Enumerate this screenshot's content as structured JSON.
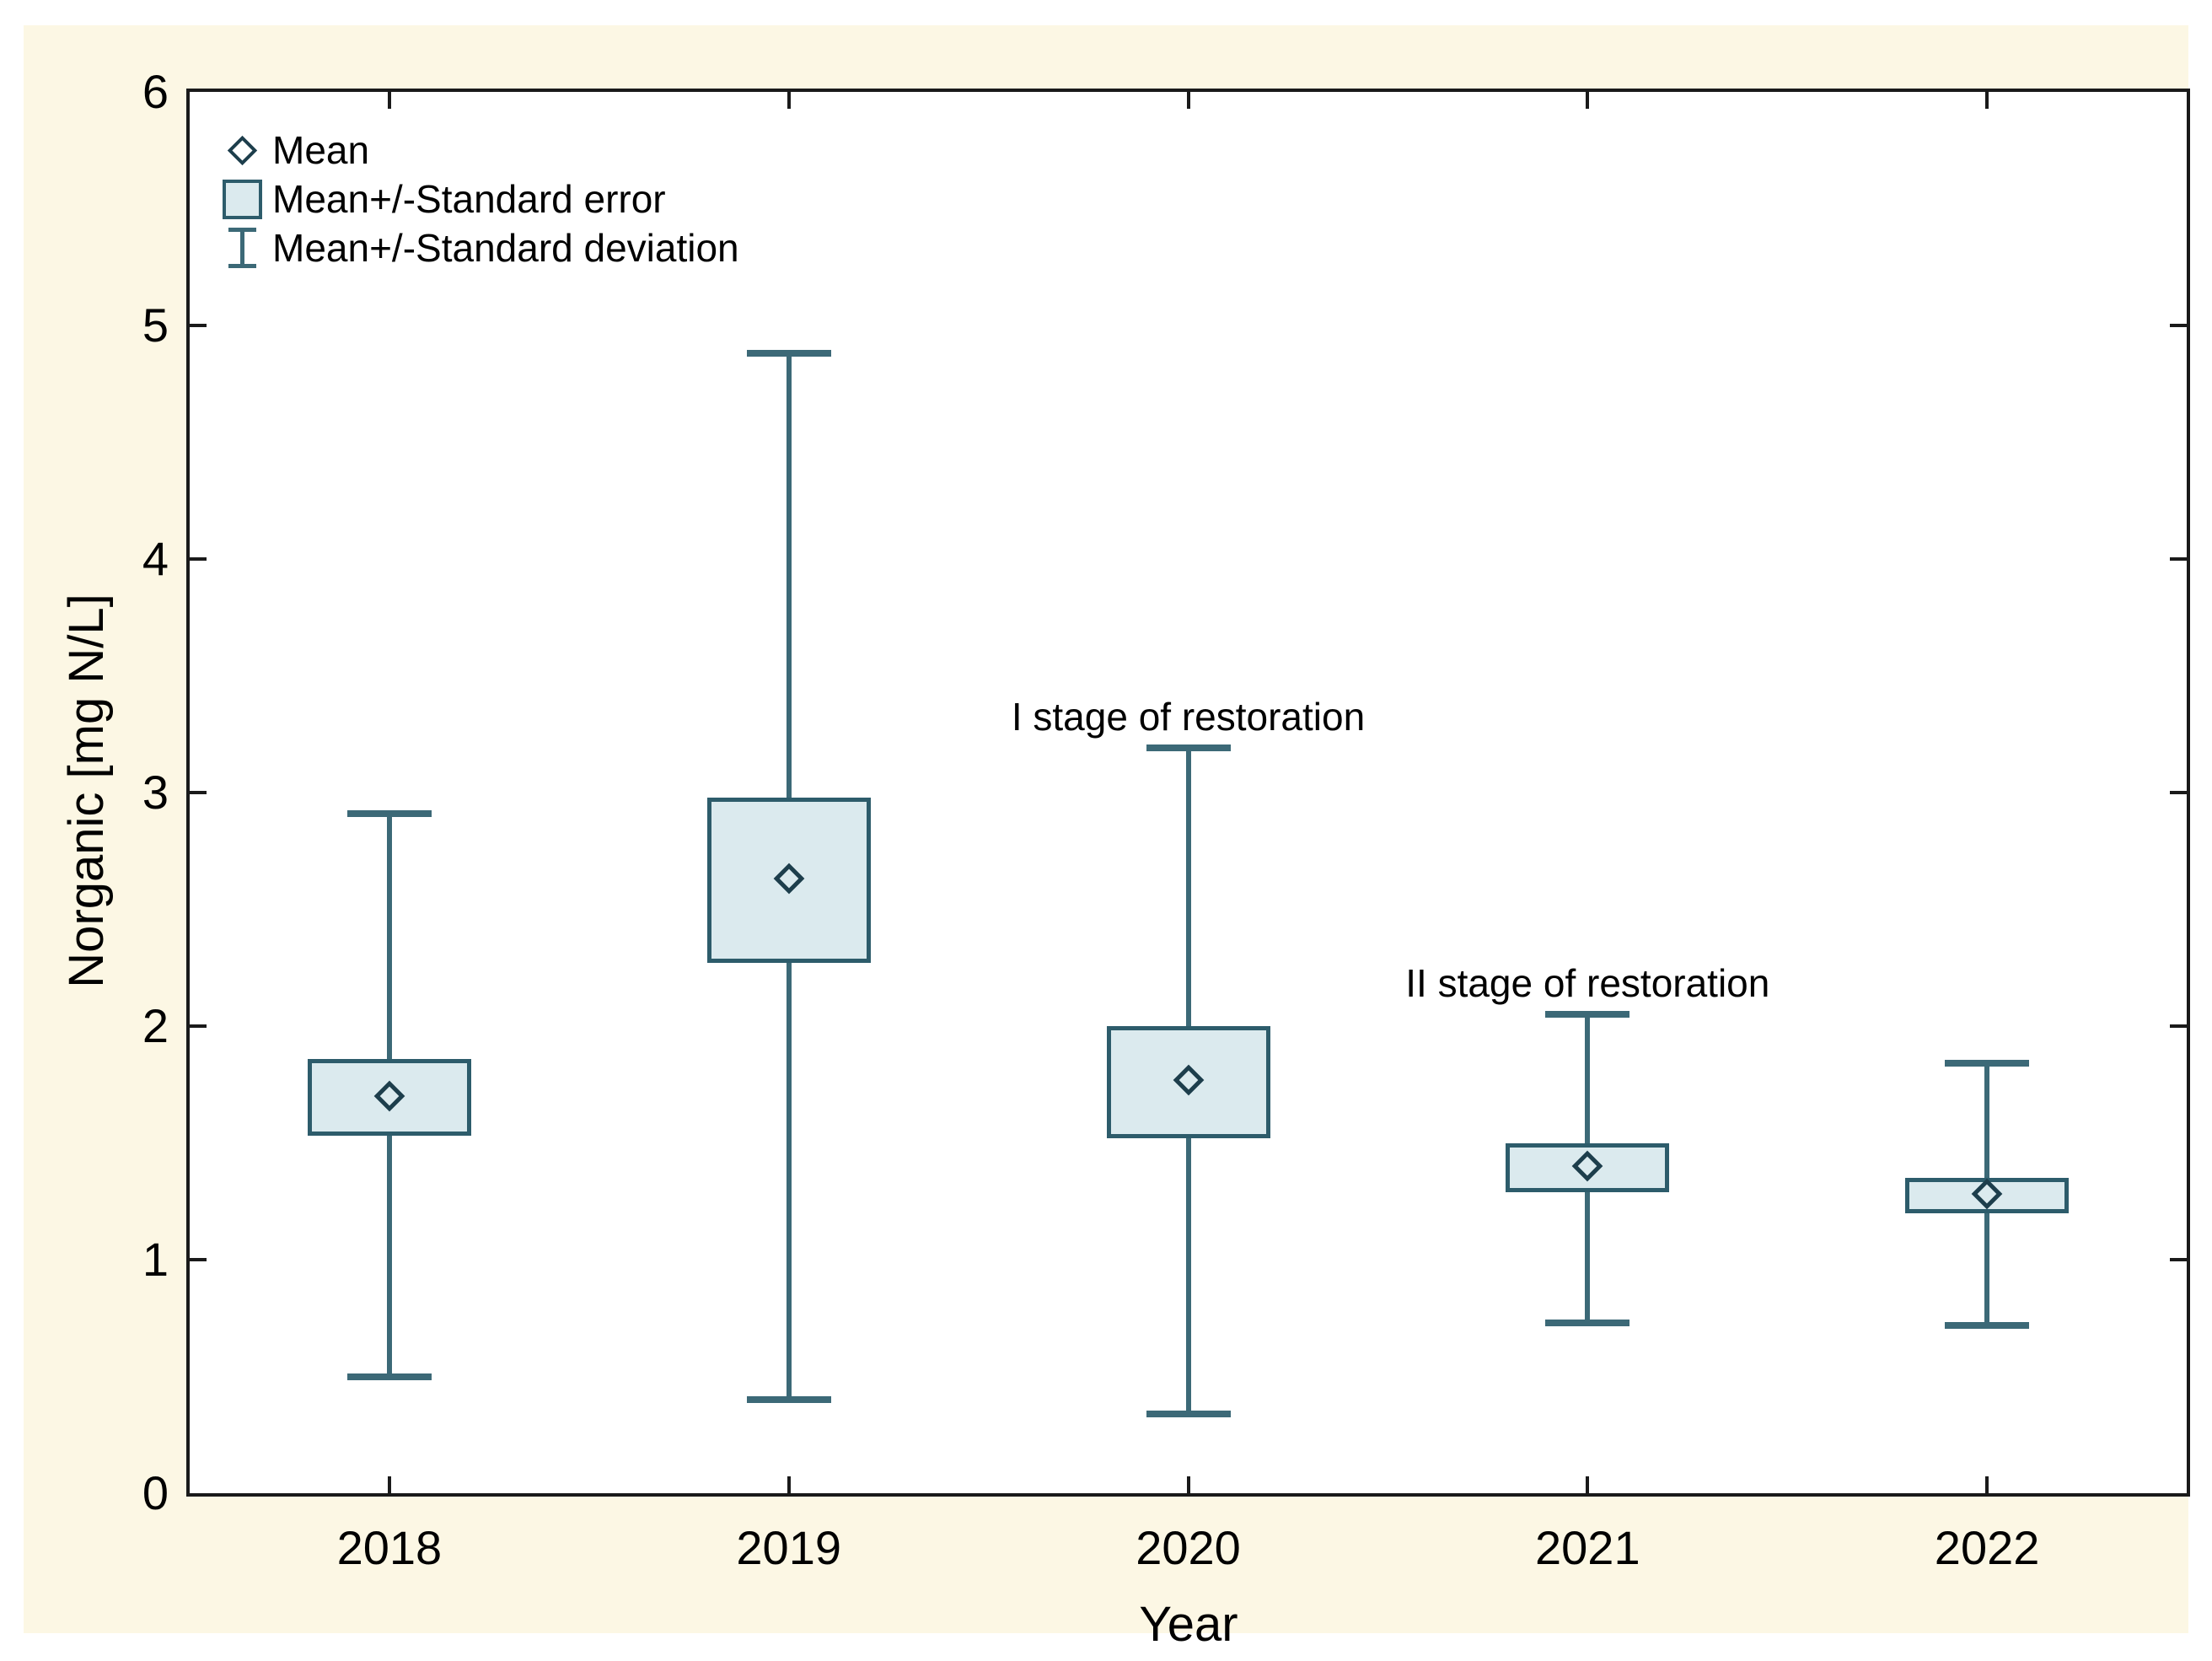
{
  "page": {
    "background_color": "#ffffff",
    "panel_color": "#fcf7e4"
  },
  "chart_data": {
    "type": "boxplot",
    "title": "",
    "xlabel": "Year",
    "ylabel": "Norganic [mg N/L]",
    "ylim": [
      0,
      6
    ],
    "y_ticks": [
      0,
      1,
      2,
      3,
      4,
      5,
      6
    ],
    "grid": "off",
    "categories": [
      "2018",
      "2019",
      "2020",
      "2021",
      "2022"
    ],
    "series": [
      {
        "name": "Mean",
        "type": "marker",
        "values": [
          1.7,
          2.63,
          1.77,
          1.4,
          1.28
        ]
      },
      {
        "name": "Mean+/-Standard error",
        "type": "box",
        "low": [
          1.53,
          2.27,
          1.52,
          1.29,
          1.2
        ],
        "high": [
          1.86,
          2.98,
          2.0,
          1.5,
          1.35
        ]
      },
      {
        "name": "Mean+/-Standard deviation",
        "type": "whisker",
        "low": [
          0.5,
          0.4,
          0.34,
          0.73,
          0.72
        ],
        "high": [
          2.91,
          4.88,
          3.19,
          2.05,
          1.84
        ]
      }
    ],
    "annotations": [
      {
        "text": "I stage of restoration",
        "category": "2020",
        "category_index": 2
      },
      {
        "text": "II stage of restoration",
        "category": "2021",
        "category_index": 3
      }
    ],
    "legend": {
      "position": "top-left-inside",
      "entries": [
        "Mean",
        "Mean+/-Standard error",
        "Mean+/-Standard deviation"
      ]
    },
    "colors": {
      "box_fill": "#dbeaee",
      "box_border": "#2d5c6b",
      "whisker": "#3c6977",
      "marker_outline": "#1d3e4c",
      "axis": "#1a1a1a"
    }
  }
}
